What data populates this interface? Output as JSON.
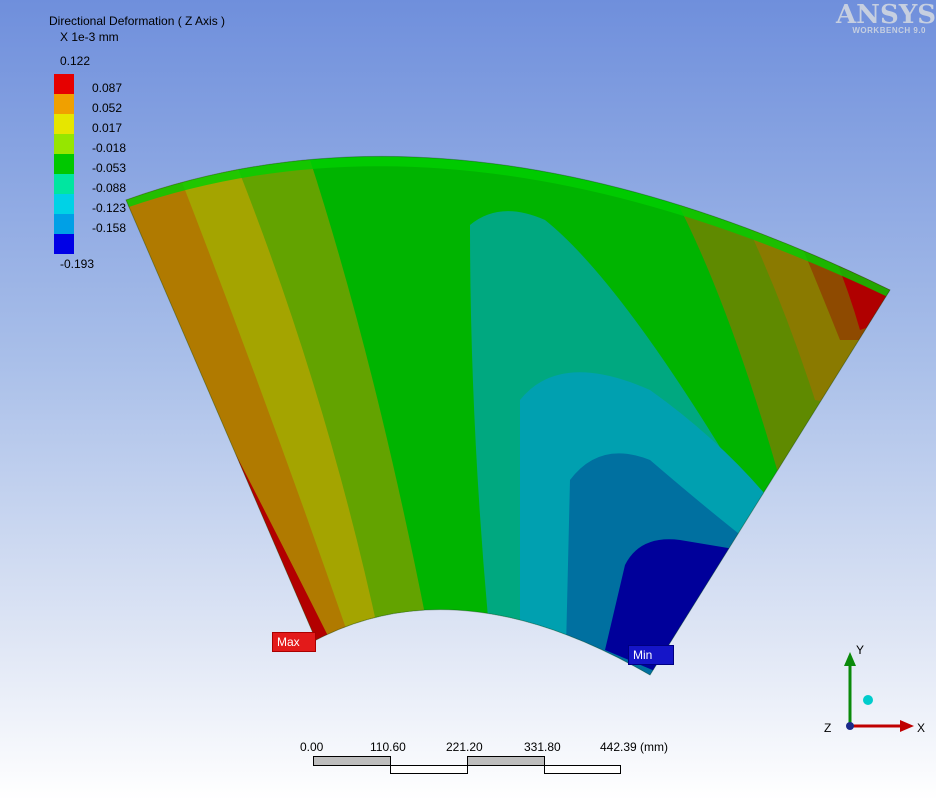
{
  "legend": {
    "title": "Directional Deformation ( Z Axis )",
    "units": "X 1e-3 mm",
    "max_value": "0.122",
    "min_value": "-0.193",
    "bands": [
      {
        "label": "0.087",
        "color": "#e60000"
      },
      {
        "label": "0.052",
        "color": "#f0a000"
      },
      {
        "label": "0.017",
        "color": "#e6e600"
      },
      {
        "label": "-0.018",
        "color": "#96e600"
      },
      {
        "label": "-0.053",
        "color": "#00c800"
      },
      {
        "label": "-0.088",
        "color": "#00e6a0"
      },
      {
        "label": "-0.123",
        "color": "#00d2e6"
      },
      {
        "label": "-0.158",
        "color": "#00a0e6"
      },
      {
        "label": "",
        "color": "#0000e6"
      }
    ]
  },
  "logo": {
    "brand": "ANSYS",
    "sub": "WORKBENCH 9.0"
  },
  "markers": {
    "max": "Max",
    "min": "Min"
  },
  "scale": {
    "ticks": [
      "0.00",
      "110.60",
      "221.20",
      "331.80",
      "442.39 (mm)"
    ]
  },
  "triad": {
    "x": "X",
    "y": "Y",
    "z": "Z"
  }
}
